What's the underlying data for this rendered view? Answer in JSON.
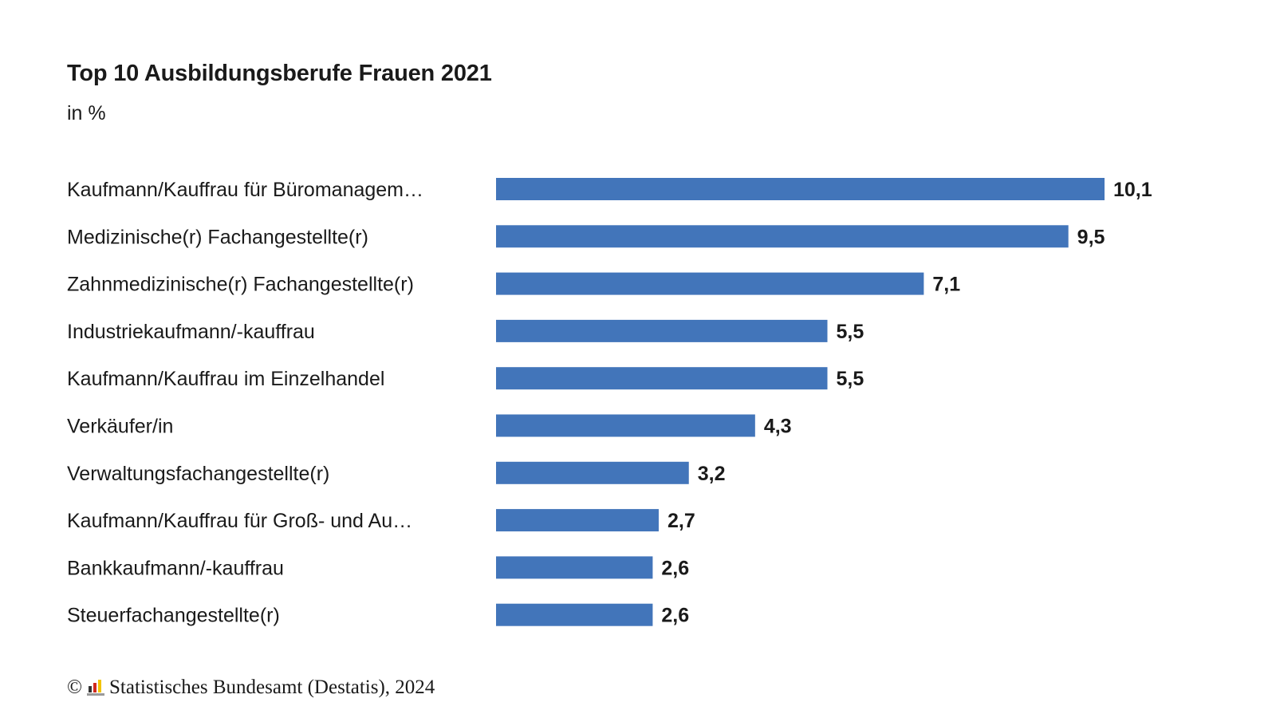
{
  "chart_data": {
    "type": "bar",
    "orientation": "horizontal",
    "title": "Top 10 Ausbildungsberufe Frauen 2021",
    "subtitle": "in %",
    "categories": [
      "Kaufmann/Kauffrau für Büromanagem…",
      "Medizinische(r) Fachangestellte(r)",
      "Zahnmedizinische(r) Fachangestellte(r)",
      "Industriekaufmann/-kauffrau",
      "Kaufmann/Kauffrau im Einzelhandel",
      "Verkäufer/in",
      "Verwaltungsfachangestellte(r)",
      "Kaufmann/Kauffrau für Groß- und Au…",
      "Bankkaufmann/-kauffrau",
      "Steuerfachangestellte(r)"
    ],
    "values": [
      10.1,
      9.5,
      7.1,
      5.5,
      5.5,
      4.3,
      3.2,
      2.7,
      2.6,
      2.6
    ],
    "value_labels": [
      "10,1",
      "9,5",
      "7,1",
      "5,5",
      "5,5",
      "4,3",
      "3,2",
      "2,7",
      "2,6",
      "2,6"
    ],
    "bar_color": "#4275ba",
    "xlim": [
      0,
      10.1
    ],
    "grid": false,
    "axes_visible": false
  },
  "footer": {
    "copyright_symbol": "©",
    "source": "Statistisches Bundesamt (Destatis), 2024"
  }
}
